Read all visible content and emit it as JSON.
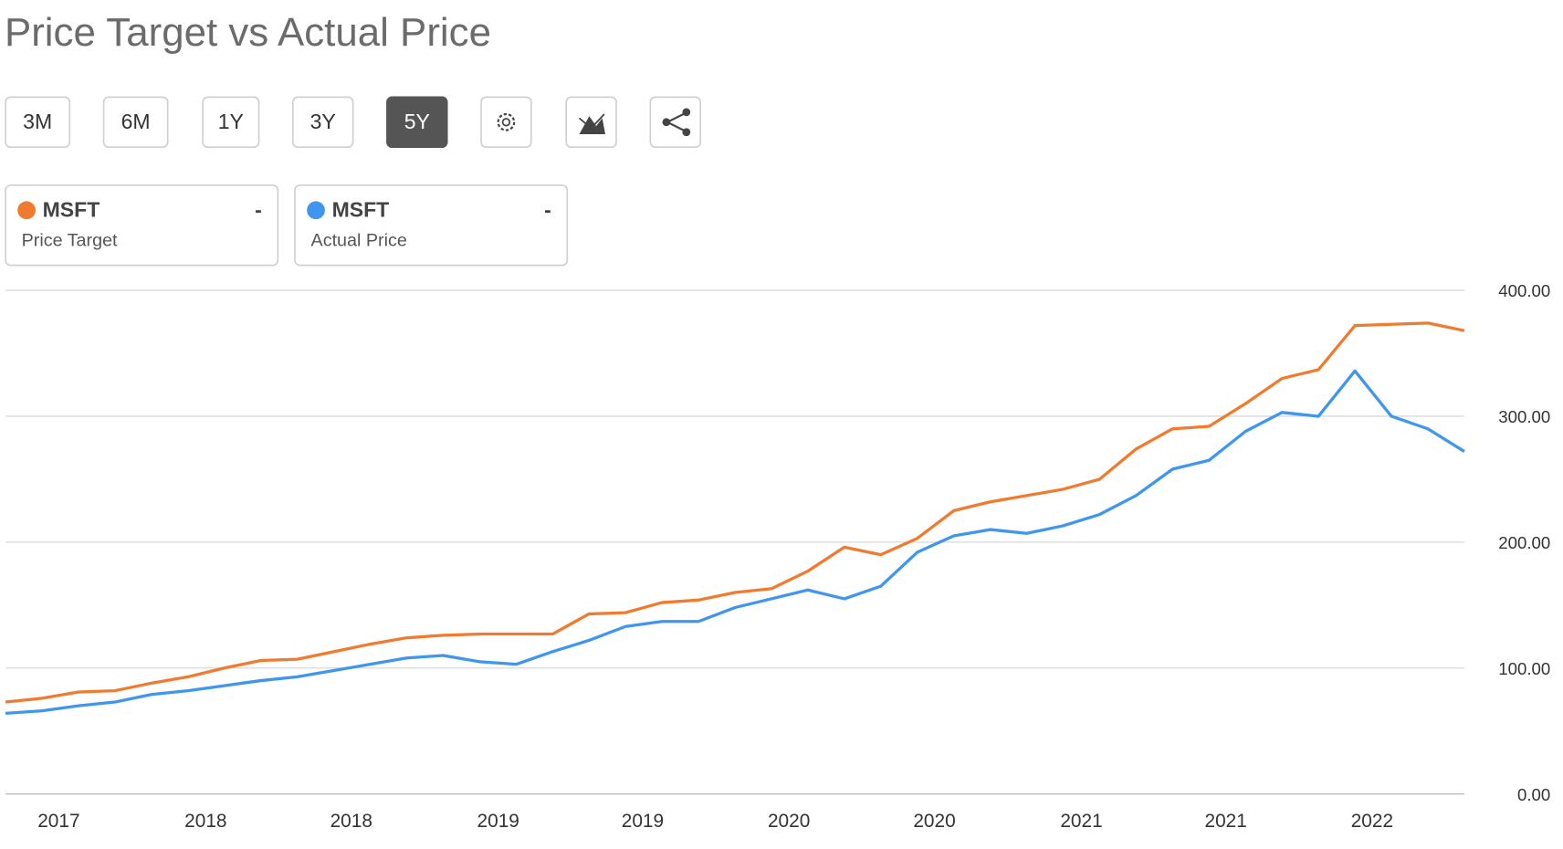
{
  "chart_data": {
    "type": "line",
    "title": "Price Target vs Actual Price",
    "range_buttons": [
      "3M",
      "6M",
      "1Y",
      "3Y",
      "5Y"
    ],
    "active_range": 4,
    "grid": true,
    "ylim": [
      0,
      400
    ],
    "yticks": [
      {
        "value": 0,
        "label": "0.00"
      },
      {
        "value": 100,
        "label": "100.00"
      },
      {
        "value": 200,
        "label": "200.00"
      },
      {
        "value": 300,
        "label": "300.00"
      },
      {
        "value": 400,
        "label": "400.00"
      }
    ],
    "xlim": [
      0,
      40
    ],
    "xticks": [
      {
        "value": 1.46,
        "label": "2017"
      },
      {
        "value": 5.49,
        "label": "2018"
      },
      {
        "value": 9.48,
        "label": "2018"
      },
      {
        "value": 13.51,
        "label": "2019"
      },
      {
        "value": 17.47,
        "label": "2019"
      },
      {
        "value": 21.48,
        "label": "2020"
      },
      {
        "value": 25.47,
        "label": "2020"
      },
      {
        "value": 29.5,
        "label": "2021"
      },
      {
        "value": 33.46,
        "label": "2021"
      },
      {
        "value": 37.47,
        "label": "2022"
      }
    ],
    "series": [
      {
        "name": "MSFT",
        "description": "Price Target",
        "legend_value": "-",
        "color": "#f07b2f",
        "values": [
          73,
          76,
          81,
          82,
          88,
          93,
          100,
          106,
          107,
          113,
          119,
          124,
          126,
          127,
          127,
          127,
          143,
          144,
          152,
          154,
          160,
          163,
          177,
          196,
          190,
          203,
          225,
          232,
          237,
          242,
          250,
          274,
          290,
          292,
          310,
          330,
          337,
          372,
          373,
          374,
          368
        ]
      },
      {
        "name": "MSFT",
        "description": "Actual Price",
        "legend_value": "-",
        "color": "#4096ee",
        "values": [
          64,
          66,
          70,
          73,
          79,
          82,
          86,
          90,
          93,
          98,
          103,
          108,
          110,
          105,
          103,
          113,
          122,
          133,
          137,
          137,
          148,
          155,
          162,
          155,
          165,
          192,
          205,
          210,
          207,
          213,
          222,
          237,
          258,
          265,
          288,
          303,
          300,
          336,
          300,
          290,
          272
        ]
      }
    ]
  }
}
